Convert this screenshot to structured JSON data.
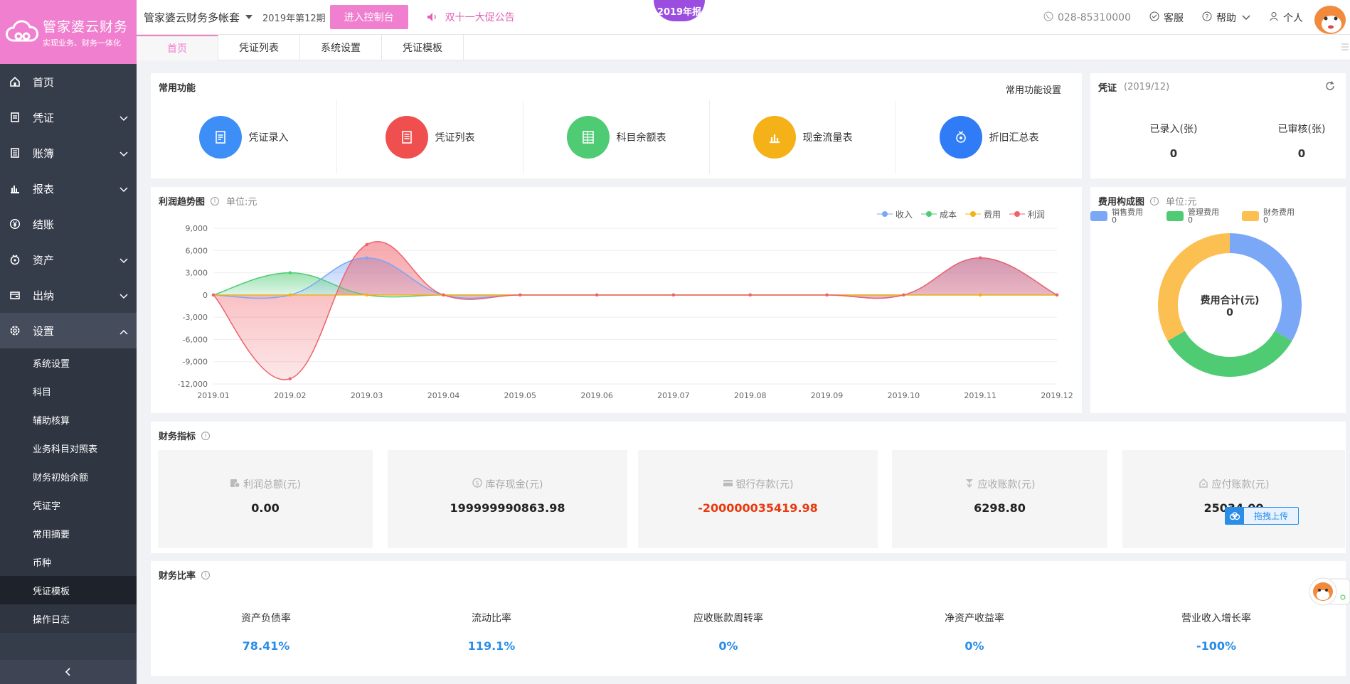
{
  "brand": {
    "title": "管家婆云财务",
    "subtitle": "实现业务、财务一体化"
  },
  "sidebar": {
    "items": [
      {
        "label": "首页",
        "icon": "home-icon",
        "has_children": false
      },
      {
        "label": "凭证",
        "icon": "voucher-icon",
        "has_children": true
      },
      {
        "label": "账簿",
        "icon": "ledger-icon",
        "has_children": true
      },
      {
        "label": "报表",
        "icon": "report-icon",
        "has_children": true
      },
      {
        "label": "结账",
        "icon": "yen-icon",
        "has_children": false
      },
      {
        "label": "资产",
        "icon": "asset-icon",
        "has_children": true
      },
      {
        "label": "出纳",
        "icon": "cashier-icon",
        "has_children": true
      },
      {
        "label": "设置",
        "icon": "gear-icon",
        "has_children": true,
        "open": true
      }
    ],
    "sub_items": [
      "系统设置",
      "科目",
      "辅助核算",
      "业务科目对照表",
      "财务初始余额",
      "凭证字",
      "常用摘要",
      "币种",
      "凭证模板",
      "操作日志"
    ],
    "active_sub": "凭证模板"
  },
  "topbar": {
    "account": "管家婆云财务多帐套",
    "period": "2019年第12期",
    "console_button": "进入控制台",
    "notice": "双十一大促公告",
    "badge": "2019年报",
    "phone": "028-85310000",
    "service": "客服",
    "help": "帮助",
    "user": "个人"
  },
  "tabs": [
    "首页",
    "凭证列表",
    "系统设置",
    "凭证模板"
  ],
  "quick_functions": {
    "title": "常用功能",
    "settings_link": "常用功能设置",
    "items": [
      {
        "label": "凭证录入",
        "color": "#3d8ef7",
        "icon": "voucher-entry-icon"
      },
      {
        "label": "凭证列表",
        "color": "#ef4f4f",
        "icon": "voucher-list-icon"
      },
      {
        "label": "科目余额表",
        "color": "#4ecb73",
        "icon": "balance-sheet-icon"
      },
      {
        "label": "现金流量表",
        "color": "#f5b118",
        "icon": "cash-flow-icon"
      },
      {
        "label": "折旧汇总表",
        "color": "#2f7cf6",
        "icon": "depreciation-icon"
      }
    ]
  },
  "voucher": {
    "title": "凭证",
    "period": "(2019/12)",
    "entered_label": "已录入(张)",
    "entered_value": "0",
    "audited_label": "已审核(张)",
    "audited_value": "0"
  },
  "profit_chart": {
    "title": "利润趋势图",
    "unit": "单位:元"
  },
  "chart_data": [
    {
      "type": "area",
      "title": "利润趋势图",
      "categories": [
        "2019.01",
        "2019.02",
        "2019.03",
        "2019.04",
        "2019.05",
        "2019.06",
        "2019.07",
        "2019.08",
        "2019.09",
        "2019.10",
        "2019.11",
        "2019.12"
      ],
      "ylim": [
        -12000,
        9000
      ],
      "yticks": [
        "9,000",
        "6,000",
        "3,000",
        "0",
        "-3,000",
        "-6,000",
        "-9,000",
        "-12,000"
      ],
      "ytick_values": [
        9000,
        6000,
        3000,
        0,
        -3000,
        -6000,
        -9000,
        -12000
      ],
      "series": [
        {
          "name": "收入",
          "color": "#7ba7f7",
          "values": [
            0,
            0,
            5000,
            0,
            0,
            0,
            0,
            0,
            0,
            0,
            5000,
            0
          ]
        },
        {
          "name": "成本",
          "color": "#4ecb73",
          "values": [
            0,
            3000,
            0,
            0,
            0,
            0,
            0,
            0,
            0,
            0,
            0,
            0
          ]
        },
        {
          "name": "费用",
          "color": "#f5b118",
          "values": [
            0,
            0,
            0,
            0,
            0,
            0,
            0,
            0,
            0,
            0,
            0,
            0
          ]
        },
        {
          "name": "利润",
          "color": "#f0626a",
          "values": [
            0,
            -11300,
            6800,
            0,
            0,
            0,
            0,
            0,
            0,
            0,
            5000,
            0
          ]
        }
      ],
      "grid": true,
      "legend": "top-right"
    },
    {
      "type": "pie",
      "title": "费用构成图",
      "center_label": "费用合计(元)",
      "center_value": "0",
      "series": [
        {
          "name": "销售费用",
          "value": 0,
          "display": "0",
          "color": "#7ba7f7"
        },
        {
          "name": "管理费用",
          "value": 0,
          "display": "0",
          "color": "#4ecb73"
        },
        {
          "name": "财务费用",
          "value": 0,
          "display": "0",
          "color": "#fcbf52"
        }
      ],
      "legend": "top"
    }
  ],
  "expense_chart": {
    "title": "费用构成图",
    "unit": "单位:元"
  },
  "indicators": {
    "title": "财务指标",
    "items": [
      {
        "label": "利润总额(元)",
        "value": "0.00",
        "negative": false,
        "icon": "profit-icon"
      },
      {
        "label": "库存现金(元)",
        "value": "199999990863.98",
        "negative": false,
        "icon": "cash-icon"
      },
      {
        "label": "银行存款(元)",
        "value": "-200000035419.98",
        "negative": true,
        "icon": "bank-card-icon"
      },
      {
        "label": "应收账款(元)",
        "value": "6298.80",
        "negative": false,
        "icon": "receivable-icon"
      },
      {
        "label": "应付账款(元)",
        "value": "25034.00",
        "negative": false,
        "icon": "payable-icon"
      }
    ],
    "upload_label": "拖拽上传"
  },
  "ratios": {
    "title": "财务比率",
    "items": [
      {
        "label": "资产负债率",
        "value": "78.41%"
      },
      {
        "label": "流动比率",
        "value": "119.1%"
      },
      {
        "label": "应收账款周转率",
        "value": "0%"
      },
      {
        "label": "净资产收益率",
        "value": "0%"
      },
      {
        "label": "营业收入增长率",
        "value": "-100%"
      }
    ]
  }
}
